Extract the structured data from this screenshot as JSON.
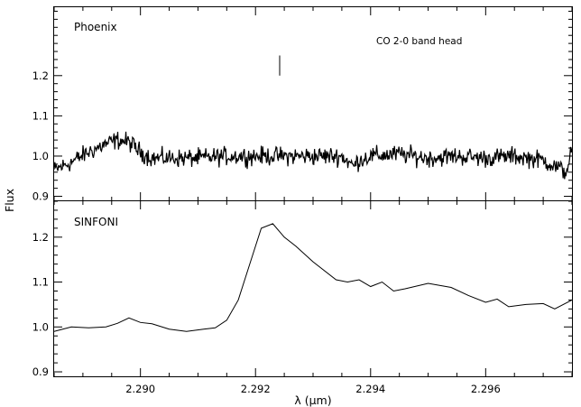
{
  "chart_data": [
    {
      "type": "line",
      "panel_label": "Phoenix",
      "annotation": "CO 2-0 band head",
      "band_head_x": 2.29242,
      "band_head_y_range": [
        1.2,
        1.25
      ],
      "xlim": [
        2.2885,
        2.2975
      ],
      "ylim": [
        0.89,
        1.37
      ],
      "yticks": [
        0.9,
        1.0,
        1.1,
        1.2
      ],
      "ytick_labels": [
        "0.9",
        "1.0",
        "1.1",
        "1.2"
      ],
      "series": [
        {
          "x": [
            2.2885,
            2.2888,
            2.2891,
            2.2894,
            2.2896,
            2.2898,
            2.29,
            2.2902,
            2.2905,
            2.291,
            2.2915,
            2.292,
            2.2925,
            2.293,
            2.2935,
            2.2937,
            2.2938,
            2.294,
            2.2945,
            2.295,
            2.2955,
            2.296,
            2.2965,
            2.297,
            2.2972,
            2.2974,
            2.2975
          ],
          "y": [
            0.965,
            0.985,
            1.01,
            1.03,
            1.04,
            1.035,
            1.01,
            0.995,
            0.995,
            0.995,
            1.0,
            1.0,
            1.0,
            1.0,
            1.0,
            0.975,
            0.99,
            1.0,
            1.005,
            0.995,
            1.0,
            0.995,
            1.0,
            0.99,
            0.975,
            0.96,
            1.02
          ],
          "noise_amplitude": 0.014
        }
      ]
    },
    {
      "type": "line",
      "panel_label": "SINFONI",
      "xlim": [
        2.2885,
        2.2975
      ],
      "ylim": [
        0.89,
        1.28
      ],
      "yticks": [
        0.9,
        1.0,
        1.1,
        1.2
      ],
      "ytick_labels": [
        "0.9",
        "1.0",
        "1.1",
        "1.2"
      ],
      "series": [
        {
          "x": [
            2.2885,
            2.2888,
            2.2891,
            2.2894,
            2.2896,
            2.2898,
            2.29,
            2.2902,
            2.2905,
            2.2908,
            2.2911,
            2.2913,
            2.2915,
            2.2917,
            2.2919,
            2.2921,
            2.2923,
            2.2925,
            2.2927,
            2.293,
            2.2934,
            2.2936,
            2.2938,
            2.294,
            2.2942,
            2.2944,
            2.2946,
            2.295,
            2.2954,
            2.2957,
            2.296,
            2.2962,
            2.2964,
            2.2967,
            2.297,
            2.2972,
            2.2975
          ],
          "y": [
            0.99,
            1.0,
            0.998,
            1.0,
            1.008,
            1.02,
            1.01,
            1.007,
            0.995,
            0.99,
            0.995,
            0.998,
            1.015,
            1.06,
            1.14,
            1.22,
            1.23,
            1.2,
            1.18,
            1.145,
            1.105,
            1.1,
            1.105,
            1.09,
            1.1,
            1.08,
            1.085,
            1.097,
            1.088,
            1.07,
            1.055,
            1.062,
            1.045,
            1.05,
            1.052,
            1.04,
            1.06
          ]
        }
      ]
    }
  ],
  "x_axis": {
    "ticks": [
      2.29,
      2.292,
      2.294,
      2.296
    ],
    "tick_labels": [
      "2.290",
      "2.292",
      "2.294",
      "2.296"
    ],
    "label": "λ (μm)"
  },
  "y_axis": {
    "label": "Flux"
  }
}
